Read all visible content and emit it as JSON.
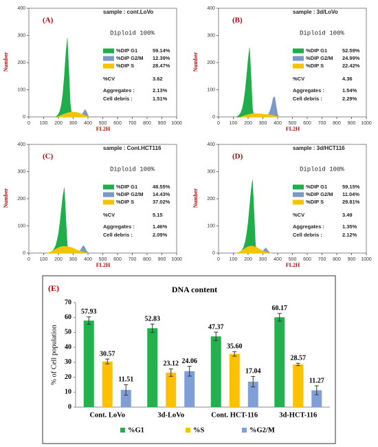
{
  "chart_data": [
    {
      "type": "area",
      "title": "(A)",
      "sample": "sample : cont.LoVo",
      "annotation": "Diploid 100%",
      "xlabel": "FL2H",
      "ylabel": "Number",
      "xlim": [
        0,
        1000
      ],
      "xticks": [
        0,
        100,
        200,
        300,
        400,
        500,
        600,
        700,
        800,
        900,
        1000
      ],
      "ylim": [
        0,
        400
      ],
      "yticks": [
        0,
        100,
        200,
        300,
        400
      ],
      "series": [
        {
          "name": "%DIP G1",
          "stat": "59.14%",
          "color": "#1fae4b",
          "x": [
            180,
            190,
            200,
            210,
            220,
            230,
            240,
            250,
            260,
            270,
            280,
            290,
            300
          ],
          "values": [
            0,
            4,
            10,
            22,
            45,
            85,
            150,
            230,
            290,
            180,
            50,
            8,
            0
          ]
        },
        {
          "name": "%DIP G2/M",
          "stat": "12.39%",
          "color": "#7b98c9",
          "x": [
            340,
            350,
            360,
            370,
            380,
            390,
            400,
            410
          ],
          "values": [
            0,
            4,
            10,
            18,
            28,
            20,
            6,
            0
          ]
        },
        {
          "name": "%DIP S",
          "stat": "28.47%",
          "color": "#f5c400",
          "x": [
            190,
            210,
            230,
            250,
            270,
            290,
            310,
            330,
            350,
            370,
            390,
            410
          ],
          "values": [
            0,
            4,
            9,
            13,
            16,
            18,
            18,
            16,
            12,
            8,
            4,
            0
          ]
        }
      ],
      "stats": [
        {
          "label": "%CV",
          "value": "3.62"
        },
        {
          "label": "Aggregates :",
          "value": "2.13%"
        },
        {
          "label": "Cell debris :",
          "value": "1.51%"
        }
      ]
    },
    {
      "type": "area",
      "title": "(B)",
      "sample": "sample : 3d/LoVo",
      "annotation": "Diploid 100%",
      "xlabel": "FL2H",
      "ylabel": "Number",
      "xlim": [
        0,
        1000
      ],
      "xticks": [
        0,
        100,
        200,
        300,
        400,
        500,
        600,
        700,
        800,
        900,
        1000
      ],
      "ylim": [
        0,
        400
      ],
      "yticks": [
        0,
        100,
        200,
        300,
        400
      ],
      "series": [
        {
          "name": "%DIP G1",
          "stat": "52.59%",
          "color": "#1fae4b",
          "x": [
            120,
            130,
            140,
            150,
            160,
            170,
            180,
            190,
            200,
            210,
            220,
            230,
            240
          ],
          "values": [
            0,
            3,
            8,
            15,
            30,
            55,
            95,
            150,
            210,
            255,
            150,
            30,
            0
          ]
        },
        {
          "name": "%DIP G2/M",
          "stat": "24.99%",
          "color": "#7b98c9",
          "x": [
            320,
            330,
            340,
            350,
            360,
            370,
            380,
            390,
            400,
            410
          ],
          "values": [
            0,
            5,
            12,
            25,
            45,
            70,
            75,
            40,
            8,
            0
          ]
        },
        {
          "name": "%DIP S",
          "stat": "22.42%",
          "color": "#f5c400",
          "x": [
            150,
            170,
            190,
            210,
            230,
            250,
            270,
            290,
            310,
            330,
            350,
            370,
            390,
            410
          ],
          "values": [
            0,
            4,
            7,
            10,
            12,
            12,
            12,
            11,
            10,
            9,
            8,
            6,
            3,
            0
          ]
        }
      ],
      "stats": [
        {
          "label": "%CV",
          "value": "4.36"
        },
        {
          "label": "Aggregates :",
          "value": "1.54%"
        },
        {
          "label": "Cell debris :",
          "value": "2.29%"
        }
      ]
    },
    {
      "type": "area",
      "title": "(C)",
      "sample": "sample : Cont.HCT116",
      "annotation": "Diploid 100%",
      "xlabel": "FL2H",
      "ylabel": "Number",
      "xlim": [
        0,
        1000
      ],
      "xticks": [
        0,
        100,
        200,
        300,
        400,
        500,
        600,
        700,
        800,
        900,
        1000
      ],
      "ylim": [
        0,
        400
      ],
      "yticks": [
        0,
        100,
        200,
        300,
        400
      ],
      "series": [
        {
          "name": "%DIP G1",
          "stat": "48.55%",
          "color": "#1fae4b",
          "x": [
            140,
            150,
            160,
            170,
            180,
            190,
            200,
            210,
            220,
            230,
            240,
            250,
            260,
            270,
            280
          ],
          "values": [
            0,
            3,
            8,
            15,
            25,
            45,
            70,
            110,
            160,
            210,
            240,
            130,
            30,
            5,
            0
          ]
        },
        {
          "name": "%DIP G2/M",
          "stat": "14.43%",
          "color": "#7b98c9",
          "x": [
            330,
            340,
            350,
            360,
            370,
            380,
            390,
            400,
            410
          ],
          "values": [
            0,
            5,
            12,
            22,
            28,
            20,
            8,
            2,
            0
          ]
        },
        {
          "name": "%DIP S",
          "stat": "37.02%",
          "color": "#f5c400",
          "x": [
            120,
            140,
            160,
            180,
            200,
            220,
            240,
            260,
            280,
            300,
            320,
            340,
            360,
            380,
            400
          ],
          "values": [
            0,
            3,
            8,
            14,
            20,
            24,
            25,
            24,
            22,
            18,
            13,
            9,
            5,
            2,
            0
          ]
        }
      ],
      "stats": [
        {
          "label": "%CV",
          "value": "5.15"
        },
        {
          "label": "Aggregates :",
          "value": "1.46%"
        },
        {
          "label": "Cell debris :",
          "value": "2.09%"
        }
      ]
    },
    {
      "type": "area",
      "title": "(D)",
      "sample": "sample : 3d/HCT116",
      "annotation": "Diploid 100%",
      "xlabel": "FL2H",
      "ylabel": "Number",
      "xlim": [
        0,
        1000
      ],
      "xticks": [
        0,
        100,
        200,
        300,
        400,
        500,
        600,
        700,
        800,
        900,
        1000
      ],
      "ylim": [
        0,
        400
      ],
      "yticks": [
        0,
        100,
        200,
        300,
        400
      ],
      "series": [
        {
          "name": "%DIP G1",
          "stat": "59.15%",
          "color": "#1fae4b",
          "x": [
            130,
            140,
            150,
            160,
            170,
            180,
            190,
            200,
            210,
            220,
            230,
            240,
            250,
            260,
            270
          ],
          "values": [
            0,
            2,
            6,
            12,
            22,
            40,
            70,
            110,
            170,
            230,
            270,
            150,
            30,
            5,
            0
          ]
        },
        {
          "name": "%DIP G2/M",
          "stat": "11.04%",
          "color": "#7b98c9",
          "x": [
            280,
            290,
            300,
            310,
            320,
            330,
            340,
            350,
            360
          ],
          "values": [
            0,
            3,
            8,
            14,
            20,
            12,
            5,
            1,
            0
          ]
        },
        {
          "name": "%DIP S",
          "stat": "29.81%",
          "color": "#f5c400",
          "x": [
            120,
            140,
            160,
            180,
            200,
            220,
            240,
            260,
            280,
            300,
            320,
            340,
            360
          ],
          "values": [
            0,
            4,
            10,
            18,
            24,
            26,
            25,
            20,
            14,
            8,
            4,
            1,
            0
          ]
        }
      ],
      "stats": [
        {
          "label": "%CV",
          "value": "3.49"
        },
        {
          "label": "Aggregates :",
          "value": "1.35%"
        },
        {
          "label": "Cell debris :",
          "value": "2.12%"
        }
      ]
    },
    {
      "type": "bar",
      "panel": "(E)",
      "title": "DNA content",
      "ylabel": "% of Cell population",
      "categories": [
        "Cont. LoVo",
        "3d-LoVo",
        "Cont. HCT-116",
        "3d-HCT-116"
      ],
      "ylim": [
        0,
        70
      ],
      "yticks": [
        0,
        10,
        20,
        30,
        40,
        50,
        60,
        70
      ],
      "series": [
        {
          "name": "%G1",
          "color": "#22b14c",
          "values": [
            57.93,
            52.83,
            47.37,
            60.17
          ],
          "value_labels": [
            "57.93",
            "52.83",
            "47.37",
            "60.17"
          ],
          "errors": [
            2.5,
            2.8,
            2.8,
            2.6
          ]
        },
        {
          "name": "%S",
          "color": "#ffc000",
          "values": [
            30.57,
            23.12,
            35.6,
            28.57
          ],
          "value_labels": [
            "30.57",
            "23.12",
            "35.60",
            "28.57"
          ],
          "errors": [
            1.6,
            2.5,
            1.5,
            0.8
          ]
        },
        {
          "name": "%G2/M",
          "color": "#7f9fd6",
          "values": [
            11.51,
            24.06,
            17.04,
            11.27
          ],
          "value_labels": [
            "11.51",
            "24.06",
            "17.04",
            "11.27"
          ],
          "errors": [
            3.5,
            3.3,
            3.5,
            3.0
          ]
        }
      ]
    }
  ]
}
